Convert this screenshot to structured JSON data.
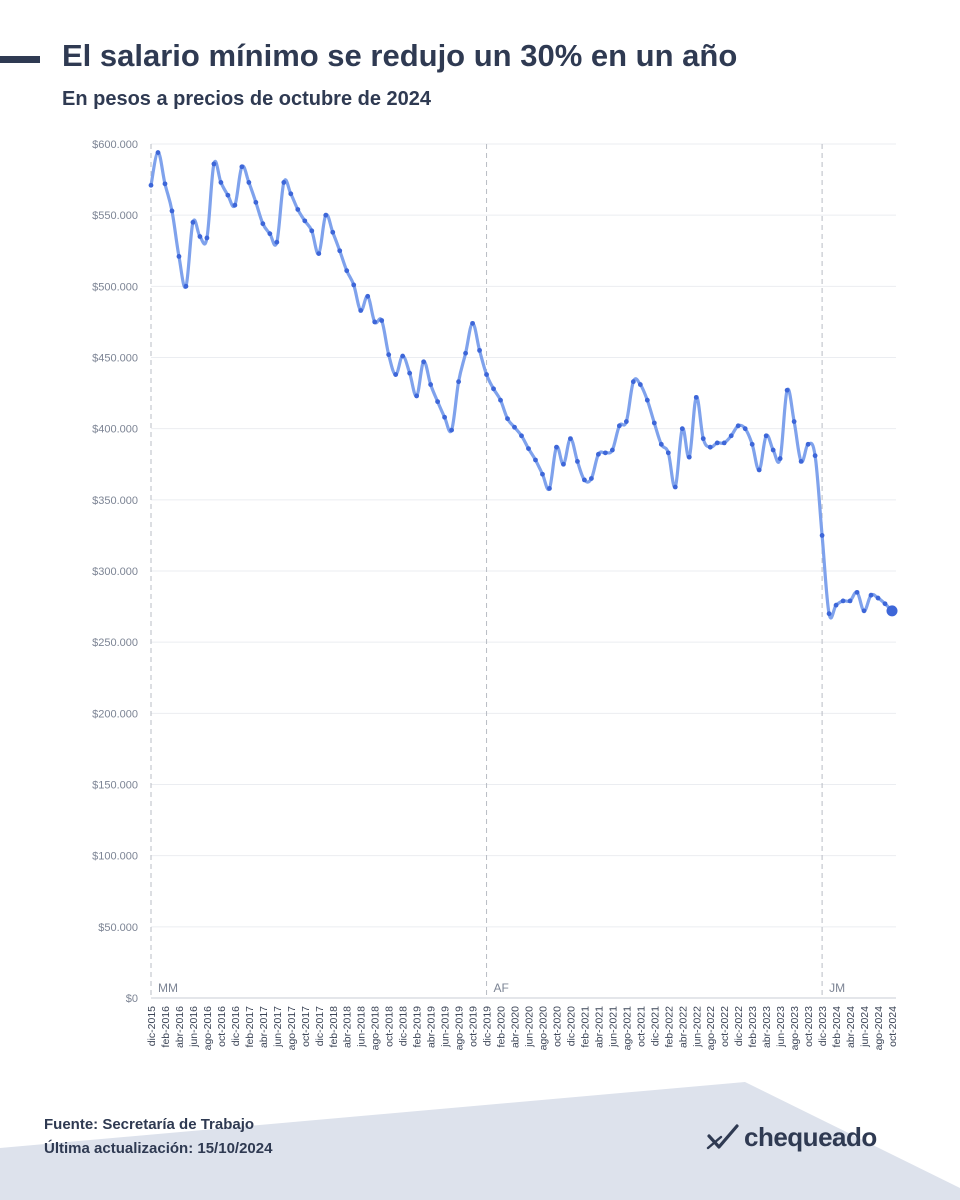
{
  "header": {
    "title": "El salario mínimo se redujo un 30% en un año",
    "subtitle": "En pesos a precios de octubre de 2024"
  },
  "footer": {
    "source": "Fuente: Secretaría de Trabajo",
    "updated": "Última actualización: 15/10/2024",
    "logo_text": "chequeado"
  },
  "colors": {
    "line": "#7fa2ec",
    "dot": "#3d66d8",
    "text": "#2f3a52",
    "footer_band": "#dde2ec"
  },
  "chart_data": {
    "type": "line",
    "title": "El salario mínimo se redujo un 30% en un año",
    "subtitle": "En pesos a precios de octubre de 2024",
    "xlabel": "",
    "ylabel": "",
    "ylim": [
      0,
      600000
    ],
    "y_ticks": [
      0,
      50000,
      100000,
      150000,
      200000,
      250000,
      300000,
      350000,
      400000,
      450000,
      500000,
      550000,
      600000
    ],
    "y_tick_labels": [
      "$0",
      "$50.000",
      "$100.000",
      "$150.000",
      "$200.000",
      "$250.000",
      "$300.000",
      "$350.000",
      "$400.000",
      "$450.000",
      "$500.000",
      "$550.000",
      "$600.000"
    ],
    "x_tick_labels": [
      "dic-2015",
      "feb-2016",
      "abr-2016",
      "jun-2016",
      "ago-2016",
      "oct-2016",
      "dic-2016",
      "feb-2017",
      "abr-2017",
      "jun-2017",
      "ago-2017",
      "oct-2017",
      "dic-2017",
      "feb-2018",
      "abr-2018",
      "jun-2018",
      "ago-2018",
      "oct-2018",
      "dic-2018",
      "feb-2019",
      "abr-2019",
      "jun-2019",
      "ago-2019",
      "oct-2019",
      "dic-2019",
      "feb-2020",
      "abr-2020",
      "jun-2020",
      "ago-2020",
      "oct-2020",
      "dic-2020",
      "feb-2021",
      "abr-2021",
      "jun-2021",
      "ago-2021",
      "oct-2021",
      "dic-2021",
      "feb-2022",
      "abr-2022",
      "jun-2022",
      "ago-2022",
      "oct-2022",
      "dic-2022",
      "feb-2023",
      "abr-2023",
      "jun-2023",
      "ago-2023",
      "oct-2023",
      "dic-2023",
      "feb-2024",
      "abr-2024",
      "jun-2024",
      "ago-2024",
      "oct-2024"
    ],
    "grid": true,
    "legend": "none",
    "start_month": "dic-2015",
    "periods": [
      {
        "label": "MM",
        "start": "dic-2015"
      },
      {
        "label": "AF",
        "start": "dic-2019"
      },
      {
        "label": "JM",
        "start": "dic-2023"
      }
    ],
    "series": [
      {
        "values": [
          571000,
          594000,
          572000,
          553000,
          521000,
          500000,
          545000,
          535000,
          534000,
          586000,
          573000,
          564000,
          557000,
          584000,
          573000,
          559000,
          544000,
          537000,
          531000,
          573000,
          565000,
          554000,
          546000,
          539000,
          523000,
          550000,
          538000,
          525000,
          511000,
          501000,
          483000,
          493000,
          475000,
          476000,
          452000,
          438000,
          451000,
          439000,
          423000,
          447000,
          431000,
          419000,
          408000,
          399000,
          433000,
          453000,
          474000,
          455000,
          438000,
          428000,
          420000,
          407000,
          401000,
          395000,
          386000,
          378000,
          368000,
          358000,
          387000,
          375000,
          393000,
          377000,
          364000,
          365000,
          382000,
          383000,
          385000,
          402000,
          405000,
          433000,
          431000,
          420000,
          404000,
          389000,
          383000,
          359000,
          400000,
          380000,
          422000,
          393000,
          387000,
          390000,
          390000,
          395000,
          402000,
          400000,
          389000,
          371000,
          395000,
          385000,
          379000,
          427000,
          405000,
          377000,
          389000,
          381000,
          325000,
          270000,
          276000,
          279000,
          279000,
          285000,
          272000,
          283000,
          281000,
          277000,
          272000
        ]
      }
    ]
  }
}
